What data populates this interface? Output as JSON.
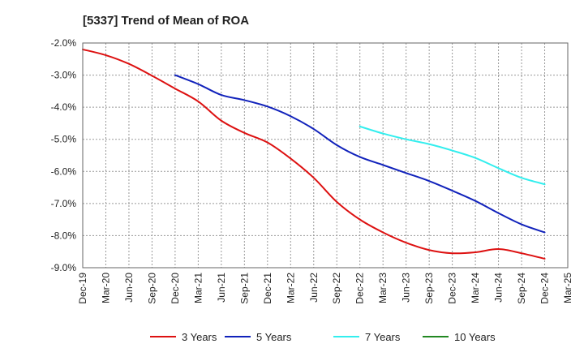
{
  "chart_data": {
    "type": "line",
    "title": "[5337]  Trend of Mean of ROA",
    "xlabel": "",
    "ylabel": "",
    "ylim": [
      -9.0,
      -2.0
    ],
    "yticks": [
      -2.0,
      -3.0,
      -4.0,
      -5.0,
      -6.0,
      -7.0,
      -8.0,
      -9.0
    ],
    "ytick_labels": [
      "-2.0%",
      "-3.0%",
      "-4.0%",
      "-5.0%",
      "-6.0%",
      "-7.0%",
      "-8.0%",
      "-9.0%"
    ],
    "x_tick_labels": [
      "Dec-19",
      "Mar-20",
      "Jun-20",
      "Sep-20",
      "Dec-20",
      "Mar-21",
      "Jun-21",
      "Sep-21",
      "Dec-21",
      "Mar-22",
      "Jun-22",
      "Sep-22",
      "Dec-22",
      "Mar-23",
      "Jun-23",
      "Sep-23",
      "Dec-23",
      "Mar-24",
      "Jun-24",
      "Sep-24",
      "Dec-24",
      "Mar-25"
    ],
    "grid": true,
    "legend_position": "bottom",
    "series": [
      {
        "name": "3 Years",
        "color": "#dd1111",
        "start_index": 0,
        "values": [
          -2.2,
          -2.38,
          -2.65,
          -3.02,
          -3.42,
          -3.82,
          -4.42,
          -4.8,
          -5.1,
          -5.6,
          -6.2,
          -6.95,
          -7.5,
          -7.9,
          -8.22,
          -8.45,
          -8.55,
          -8.52,
          -8.42,
          -8.55,
          -8.72
        ]
      },
      {
        "name": "5 Years",
        "color": "#1122bb",
        "start_index": 4,
        "values": [
          -3.0,
          -3.28,
          -3.62,
          -3.78,
          -3.98,
          -4.28,
          -4.68,
          -5.18,
          -5.55,
          -5.8,
          -6.05,
          -6.3,
          -6.6,
          -6.92,
          -7.3,
          -7.65,
          -7.9
        ]
      },
      {
        "name": "7 Years",
        "color": "#33eeee",
        "start_index": 12,
        "values": [
          -4.6,
          -4.82,
          -5.0,
          -5.15,
          -5.35,
          -5.58,
          -5.9,
          -6.2,
          -6.4
        ]
      },
      {
        "name": "10 Years",
        "color": "#228822",
        "start_index": 0,
        "values": []
      }
    ]
  }
}
